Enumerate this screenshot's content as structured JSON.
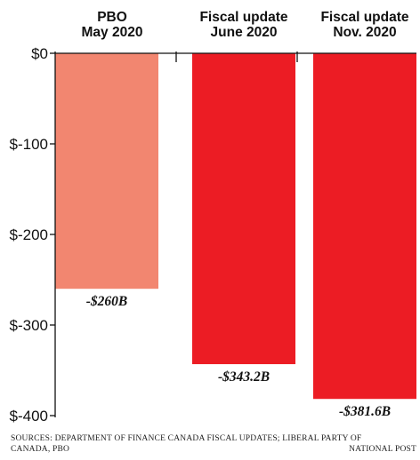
{
  "chart_data": {
    "type": "bar",
    "categories": [
      [
        "PBO",
        "May 2020"
      ],
      [
        "Fiscal update",
        "June 2020"
      ],
      [
        "Fiscal update",
        "Nov. 2020"
      ]
    ],
    "values": [
      -260,
      -343.2,
      -381.6
    ],
    "data_labels": [
      "-$260B",
      "-$343.2B",
      "-$381.6B"
    ],
    "bar_colors": [
      "#f28670",
      "#ec1c24",
      "#ec1c24"
    ],
    "yticks": [
      0,
      -100,
      -200,
      -300,
      -400
    ],
    "ytick_labels": [
      "$0",
      "$-100",
      "$-200",
      "$-300",
      "$-400"
    ],
    "ylim": [
      -400,
      0
    ],
    "grid": false,
    "title": "",
    "xlabel": "",
    "ylabel": ""
  },
  "footer": {
    "source": "SOURCES: DEPARTMENT OF FINANCE CANADA FISCAL UPDATES; LIBERAL PARTY OF CANADA, PBO",
    "credit": "NATIONAL POST"
  }
}
